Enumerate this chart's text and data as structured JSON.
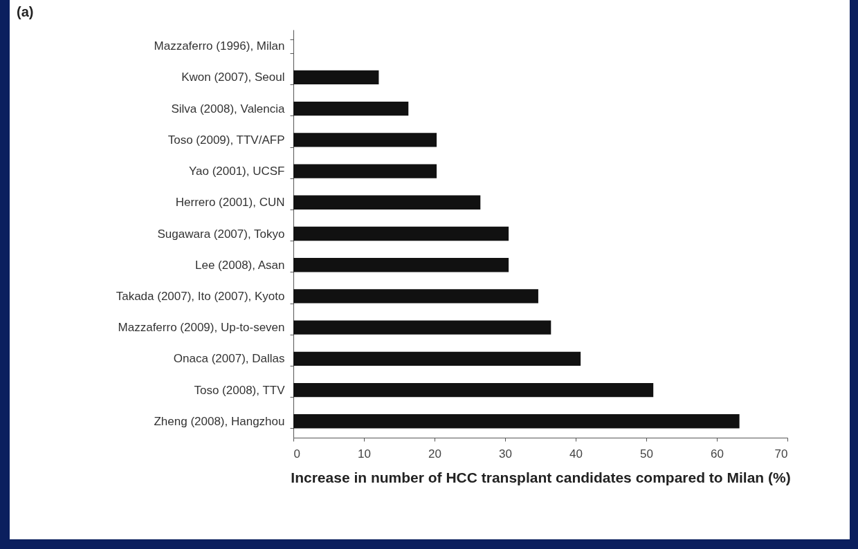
{
  "chart_data": {
    "type": "bar",
    "orientation": "horizontal",
    "title": "(a)",
    "xlabel": "Increase in number of HCC transplant candidates compared to Milan (%)",
    "categories": [
      "Mazzaferro (1996), Milan",
      "Kwon (2007), Seoul",
      "Silva (2008), Valencia",
      "Toso (2009), TTV/AFP",
      "Yao (2001), UCSF",
      "Herrero (2001), CUN",
      "Sugawara (2007), Tokyo",
      "Lee (2008), Asan",
      "Takada (2007), Ito (2007), Kyoto",
      "Mazzaferro (2009), Up-to-seven",
      "Onaca (2007), Dallas",
      "Toso (2008), TTV",
      "Zheng (2008), Hangzhou"
    ],
    "values": [
      0,
      12.1,
      16.3,
      20.3,
      20.3,
      26.5,
      30.5,
      30.5,
      34.7,
      36.5,
      40.7,
      51.0,
      63.2
    ],
    "color": "#111111",
    "xlim": [
      0,
      70
    ],
    "xticks": [
      0,
      10,
      20,
      30,
      40,
      50,
      60,
      70
    ],
    "grid": false
  }
}
